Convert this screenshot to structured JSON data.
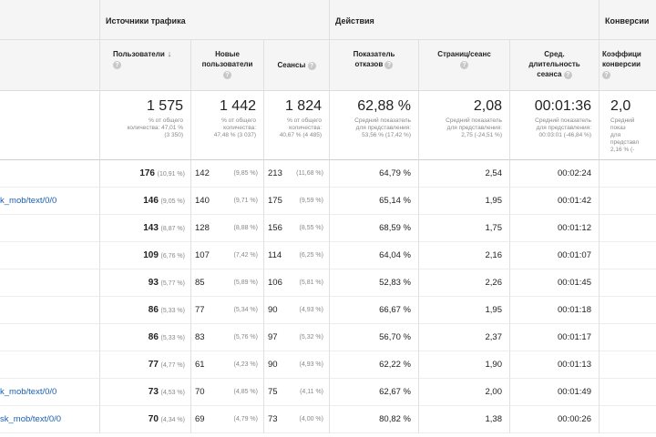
{
  "groups": {
    "traffic": "Источники трафика",
    "actions": "Действия",
    "conversions": "Конверсии"
  },
  "headers": {
    "users": "Пользователи",
    "sort_icon": "arrow-down-icon",
    "new_users_1": "Новые",
    "new_users_2": "пользователи",
    "sessions": "Сеансы",
    "bounce_1": "Показатель",
    "bounce_2": "отказов",
    "pages": "Страниц/сеанс",
    "duration_1": "Сред.",
    "duration_2": "длительность",
    "duration_3": "сеанса",
    "conv_1": "Коэффици",
    "conv_2": "конверсии",
    "help": "?"
  },
  "totals": {
    "users": {
      "value": "1 575",
      "l1": "% от общего",
      "l2": "количества: 47,01 %",
      "l3": "(3 350)"
    },
    "new_users": {
      "value": "1 442",
      "l1": "% от общего",
      "l2": "количества:",
      "l3": "47,48 % (3 037)"
    },
    "sessions": {
      "value": "1 824",
      "l1": "% от общего",
      "l2": "количества:",
      "l3": "40,67 % (4 485)"
    },
    "bounce": {
      "value": "62,88 %",
      "l1": "Средний показатель",
      "l2": "для представления:",
      "l3": "53,56 % (17,42 %)"
    },
    "pages": {
      "value": "2,08",
      "l1": "Средний показатель",
      "l2": "для представления:",
      "l3": "2,75 (-24,51 %)"
    },
    "duration": {
      "value": "00:01:36",
      "l1": "Средний показатель",
      "l2": "для представления:",
      "l3": "00:03:01 (-46,84 %)"
    },
    "conv": {
      "value": "2,0",
      "l1": "Средний показ",
      "l2": "для представл",
      "l3": "2,16 % (-"
    }
  },
  "rows": [
    {
      "label": "",
      "users": "176",
      "users_pct": "(10,91 %)",
      "new": "142",
      "new_pct": "(9,85 %)",
      "sess": "213",
      "sess_pct": "(11,68 %)",
      "bounce": "64,79 %",
      "pages": "2,54",
      "dur": "00:02:24",
      "conv": ""
    },
    {
      "label": "k_mob/text/0/0",
      "users": "146",
      "users_pct": "(9,05 %)",
      "new": "140",
      "new_pct": "(9,71 %)",
      "sess": "175",
      "sess_pct": "(9,59 %)",
      "bounce": "65,14 %",
      "pages": "1,95",
      "dur": "00:01:42",
      "conv": ""
    },
    {
      "label": "",
      "users": "143",
      "users_pct": "(8,87 %)",
      "new": "128",
      "new_pct": "(8,88 %)",
      "sess": "156",
      "sess_pct": "(8,55 %)",
      "bounce": "68,59 %",
      "pages": "1,75",
      "dur": "00:01:12",
      "conv": ""
    },
    {
      "label": "",
      "users": "109",
      "users_pct": "(6,76 %)",
      "new": "107",
      "new_pct": "(7,42 %)",
      "sess": "114",
      "sess_pct": "(6,25 %)",
      "bounce": "64,04 %",
      "pages": "2,16",
      "dur": "00:01:07",
      "conv": ""
    },
    {
      "label": "",
      "users": "93",
      "users_pct": "(5,77 %)",
      "new": "85",
      "new_pct": "(5,89 %)",
      "sess": "106",
      "sess_pct": "(5,81 %)",
      "bounce": "52,83 %",
      "pages": "2,26",
      "dur": "00:01:45",
      "conv": ""
    },
    {
      "label": "",
      "users": "86",
      "users_pct": "(5,33 %)",
      "new": "77",
      "new_pct": "(5,34 %)",
      "sess": "90",
      "sess_pct": "(4,93 %)",
      "bounce": "66,67 %",
      "pages": "1,95",
      "dur": "00:01:18",
      "conv": ""
    },
    {
      "label": "",
      "users": "86",
      "users_pct": "(5,33 %)",
      "new": "83",
      "new_pct": "(5,76 %)",
      "sess": "97",
      "sess_pct": "(5,32 %)",
      "bounce": "56,70 %",
      "pages": "2,37",
      "dur": "00:01:17",
      "conv": ""
    },
    {
      "label": "",
      "users": "77",
      "users_pct": "(4,77 %)",
      "new": "61",
      "new_pct": "(4,23 %)",
      "sess": "90",
      "sess_pct": "(4,93 %)",
      "bounce": "62,22 %",
      "pages": "1,90",
      "dur": "00:01:13",
      "conv": ""
    },
    {
      "label": "k_mob/text/0/0",
      "users": "73",
      "users_pct": "(4,53 %)",
      "new": "70",
      "new_pct": "(4,85 %)",
      "sess": "75",
      "sess_pct": "(4,11 %)",
      "bounce": "62,67 %",
      "pages": "2,00",
      "dur": "00:01:49",
      "conv": ""
    },
    {
      "label": "sk_mob/text/0/0",
      "users": "70",
      "users_pct": "(4,34 %)",
      "new": "69",
      "new_pct": "(4,79 %)",
      "sess": "73",
      "sess_pct": "(4,00 %)",
      "bounce": "80,82 %",
      "pages": "1,38",
      "dur": "00:00:26",
      "conv": ""
    }
  ]
}
